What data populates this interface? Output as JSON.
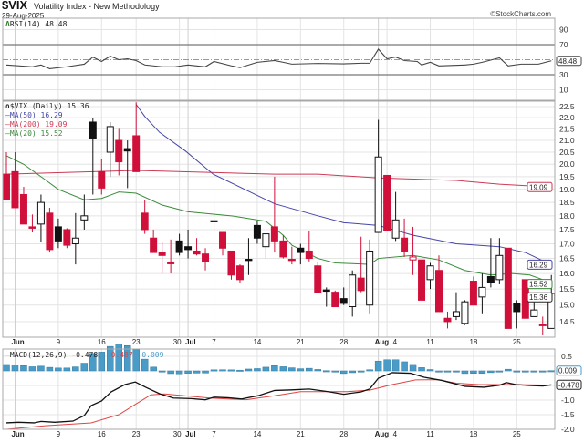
{
  "header": {
    "symbol": "$VIX",
    "name": "Volatility Index - New Methodology",
    "date": "29-Aug-2025",
    "watermark": "©StockCharts.com"
  },
  "legends": {
    "rsi": "RSI(14) 48.48",
    "price": "$VIX (Daily) 15.36",
    "ma50": "MA(50) 16.29",
    "ma200": "MA(200) 19.09",
    "ma20": "MA(20) 15.52",
    "macd_name": "MACD(12,26,9) -0.478",
    "macd_signal": ", -0.487",
    "macd_hist": ", 0.009"
  },
  "colors": {
    "up": "#111111",
    "down": "#d0103a",
    "ma50": "#4646a8",
    "ma200": "#cc3a55",
    "ma20": "#3a8a3a",
    "macd": "#111111",
    "signal": "#e04545",
    "histogram": "#4a9cc8"
  },
  "chart_data": {
    "type": "candlestick",
    "x_ticks": [
      {
        "label": "Jun",
        "index": 1,
        "month": true
      },
      {
        "label": "9",
        "index": 6
      },
      {
        "label": "16",
        "index": 11
      },
      {
        "label": "23",
        "index": 15
      },
      {
        "label": "30",
        "index": 20
      },
      {
        "label": "Jul",
        "index": 21,
        "month": true
      },
      {
        "label": "7",
        "index": 24
      },
      {
        "label": "14",
        "index": 29
      },
      {
        "label": "21",
        "index": 34
      },
      {
        "label": "28",
        "index": 39
      },
      {
        "label": "Aug",
        "index": 43,
        "month": true
      },
      {
        "label": "4",
        "index": 44
      },
      {
        "label": "11",
        "index": 49
      },
      {
        "label": "18",
        "index": 54
      },
      {
        "label": "25",
        "index": 59
      }
    ],
    "rsi": {
      "ticks": [
        90,
        70,
        30,
        10
      ],
      "levels": [
        70,
        30
      ],
      "midline": 50,
      "last": "48.48",
      "values": [
        [
          0,
          43
        ],
        [
          3,
          40.6
        ],
        [
          4,
          43
        ],
        [
          5,
          38
        ],
        [
          7,
          40.6
        ],
        [
          9,
          44
        ],
        [
          10,
          53.5
        ],
        [
          11,
          47.6
        ],
        [
          12,
          54.7
        ],
        [
          13,
          50
        ],
        [
          14,
          51.2
        ],
        [
          15,
          48.8
        ],
        [
          16,
          43
        ],
        [
          18,
          40.6
        ],
        [
          19.5,
          40.6
        ],
        [
          21,
          43
        ],
        [
          23,
          40.6
        ],
        [
          24,
          47.6
        ],
        [
          26,
          41.8
        ],
        [
          27,
          39.4
        ],
        [
          29,
          46.5
        ],
        [
          31,
          48.8
        ],
        [
          32,
          46.5
        ],
        [
          33,
          44.1
        ],
        [
          36,
          45
        ],
        [
          39,
          44.5
        ],
        [
          41,
          45.3
        ],
        [
          42,
          45.3
        ],
        [
          43,
          64
        ],
        [
          44,
          51.2
        ],
        [
          45,
          53.5
        ],
        [
          46,
          48.8
        ],
        [
          47.5,
          47.6
        ],
        [
          48,
          43
        ],
        [
          49,
          46.5
        ],
        [
          50,
          41.8
        ],
        [
          53,
          43
        ],
        [
          54,
          44.1
        ],
        [
          55,
          46.5
        ],
        [
          57,
          52.4
        ],
        [
          58,
          41.8
        ],
        [
          59.5,
          44.1
        ],
        [
          61.5,
          44.1
        ],
        [
          63,
          48.48
        ]
      ]
    },
    "price": {
      "scale": "log",
      "ylim": [
        14.05,
        22.8
      ],
      "ticks": [
        "22.5",
        "22.0",
        "21.5",
        "21.0",
        "20.5",
        "20.0",
        "19.5",
        "19.0",
        "18.5",
        "18.0",
        "17.5",
        "17.0",
        "16.5",
        "16.0",
        "15.5",
        "15.0",
        "14.5"
      ],
      "candles_ohlc_color": [
        [
          19.6,
          20.5,
          18.6,
          18.6,
          "r"
        ],
        [
          19.7,
          20.5,
          18.3,
          18.3,
          "r"
        ],
        [
          18.8,
          19.1,
          17.7,
          17.7,
          "r"
        ],
        [
          17.6,
          18.05,
          17.4,
          17.55,
          "r"
        ],
        [
          17.7,
          18.8,
          17.05,
          18.5,
          "k"
        ],
        [
          18.1,
          18.3,
          16.7,
          16.8,
          "r"
        ],
        [
          17.6,
          17.9,
          16.85,
          17.1,
          "k"
        ],
        [
          17.5,
          17.55,
          16.85,
          16.95,
          "r"
        ],
        [
          17.0,
          18.1,
          16.3,
          17.2,
          "k"
        ],
        [
          17.85,
          18.8,
          17.5,
          18.0,
          "k"
        ],
        [
          21.8,
          22.0,
          18.8,
          21.1,
          "k"
        ],
        [
          19.7,
          20.2,
          18.8,
          19.05,
          "r"
        ],
        [
          20.5,
          21.8,
          19.5,
          21.6,
          "k"
        ],
        [
          21.0,
          21.5,
          19.55,
          20.1,
          "r"
        ],
        [
          20.65,
          21.0,
          19.05,
          20.55,
          "k"
        ],
        [
          21.2,
          22.7,
          19.7,
          19.7,
          "r"
        ],
        [
          18.1,
          18.6,
          17.35,
          17.5,
          "r"
        ],
        [
          17.2,
          17.5,
          16.7,
          16.7,
          "r"
        ],
        [
          16.7,
          17.05,
          16.0,
          16.6,
          "r"
        ],
        [
          16.38,
          17.15,
          16.0,
          16.32,
          "r"
        ],
        [
          17.1,
          17.35,
          16.6,
          16.7,
          "k"
        ],
        [
          16.9,
          17.5,
          16.5,
          16.8,
          "k"
        ],
        [
          16.75,
          17.2,
          16.6,
          16.65,
          "r"
        ],
        [
          16.65,
          16.85,
          16.1,
          16.4,
          "r"
        ],
        [
          17.82,
          18.45,
          17.5,
          17.78,
          "k"
        ],
        [
          17.4,
          17.4,
          16.6,
          16.85,
          "r"
        ],
        [
          16.75,
          16.75,
          15.8,
          15.95,
          "r"
        ],
        [
          16.25,
          16.3,
          15.7,
          15.8,
          "r"
        ],
        [
          16.47,
          17.2,
          15.95,
          16.43,
          "k"
        ],
        [
          17.65,
          17.8,
          17.0,
          17.2,
          "k"
        ],
        [
          16.9,
          17.35,
          16.5,
          17.35,
          "k"
        ],
        [
          17.6,
          19.5,
          16.7,
          17.1,
          "r"
        ],
        [
          17.1,
          17.3,
          16.5,
          16.55,
          "r"
        ],
        [
          16.47,
          16.9,
          16.3,
          16.43,
          "r"
        ],
        [
          16.85,
          17.0,
          16.3,
          16.7,
          "k"
        ],
        [
          16.75,
          17.45,
          16.4,
          16.5,
          "r"
        ],
        [
          16.25,
          16.4,
          15.4,
          15.4,
          "r"
        ],
        [
          15.47,
          15.55,
          14.95,
          15.43,
          "k"
        ],
        [
          15.4,
          15.45,
          14.95,
          14.95,
          "r"
        ],
        [
          15.2,
          15.55,
          15.0,
          15.05,
          "k"
        ],
        [
          14.95,
          16.1,
          14.65,
          15.95,
          "k"
        ],
        [
          15.85,
          17.25,
          15.4,
          15.45,
          "r"
        ],
        [
          15.0,
          17.15,
          14.75,
          16.75,
          "k"
        ],
        [
          17.4,
          21.9,
          17.4,
          20.3,
          "k"
        ],
        [
          19.55,
          19.55,
          17.45,
          17.45,
          "r"
        ],
        [
          17.2,
          18.9,
          17.1,
          17.85,
          "k"
        ],
        [
          17.2,
          17.9,
          16.55,
          16.75,
          "r"
        ],
        [
          16.45,
          17.6,
          15.95,
          16.55,
          "r"
        ],
        [
          16.45,
          16.45,
          15.15,
          15.15,
          "r"
        ],
        [
          15.8,
          16.35,
          15.5,
          16.25,
          "k"
        ],
        [
          16.1,
          16.6,
          14.8,
          14.8,
          "r"
        ],
        [
          14.6,
          14.8,
          14.3,
          14.5,
          "r"
        ],
        [
          14.65,
          15.4,
          14.55,
          14.8,
          "k"
        ],
        [
          14.45,
          15.15,
          14.4,
          15.1,
          "k"
        ],
        [
          15.75,
          15.9,
          15.0,
          15.0,
          "r"
        ],
        [
          15.25,
          16.0,
          14.75,
          15.55,
          "k"
        ],
        [
          15.9,
          17.2,
          15.55,
          15.7,
          "k"
        ],
        [
          15.8,
          17.2,
          15.65,
          16.6,
          "k"
        ],
        [
          16.85,
          16.85,
          14.3,
          14.3,
          "r"
        ],
        [
          15.05,
          15.15,
          14.3,
          14.8,
          "k"
        ],
        [
          15.8,
          15.8,
          14.6,
          14.6,
          "r"
        ],
        [
          14.65,
          15.2,
          14.65,
          14.85,
          "k"
        ],
        [
          14.42,
          14.65,
          14.1,
          14.38,
          "r"
        ],
        [
          14.3,
          15.95,
          14.3,
          15.36,
          "k"
        ]
      ],
      "ma50": [
        [
          15,
          22.6
        ],
        [
          16,
          22.05
        ],
        [
          17.7,
          21.35
        ],
        [
          20.7,
          20.55
        ],
        [
          23.9,
          19.6
        ],
        [
          29.1,
          18.75
        ],
        [
          31,
          18.45
        ],
        [
          36,
          18.0
        ],
        [
          39,
          17.75
        ],
        [
          43,
          17.65
        ],
        [
          47,
          17.3
        ],
        [
          52,
          17.0
        ],
        [
          57,
          16.9
        ],
        [
          60,
          16.7
        ],
        [
          63,
          16.29
        ]
      ],
      "ma200": [
        [
          0,
          19.6
        ],
        [
          15,
          19.75
        ],
        [
          31,
          19.6
        ],
        [
          36,
          19.6
        ],
        [
          43,
          19.45
        ],
        [
          52,
          19.35
        ],
        [
          57,
          19.2
        ],
        [
          63,
          19.09
        ]
      ],
      "ma20": [
        [
          0,
          20.35
        ],
        [
          2,
          20.0
        ],
        [
          4,
          19.5
        ],
        [
          6,
          19.0
        ],
        [
          9,
          18.6
        ],
        [
          11,
          18.65
        ],
        [
          13,
          18.9
        ],
        [
          15,
          18.85
        ],
        [
          18,
          18.4
        ],
        [
          21,
          18.15
        ],
        [
          26,
          18.0
        ],
        [
          30,
          17.8
        ],
        [
          31,
          17.55
        ],
        [
          32,
          17.3
        ],
        [
          33,
          16.95
        ],
        [
          36,
          16.5
        ],
        [
          38,
          16.35
        ],
        [
          42,
          16.3
        ],
        [
          43,
          16.5
        ],
        [
          47,
          16.6
        ],
        [
          50,
          16.45
        ],
        [
          53,
          16.1
        ],
        [
          56,
          15.95
        ],
        [
          58.5,
          16.0
        ],
        [
          60.5,
          15.95
        ],
        [
          62,
          15.8
        ],
        [
          63,
          15.52
        ]
      ],
      "last_labels": {
        "ma200": "19.09",
        "ma50": "16.29",
        "ma20": "15.52",
        "close": "15.36"
      }
    },
    "macd": {
      "ticks": [
        "0.5",
        "-1.0",
        "-1.5",
        "-2.0"
      ],
      "ylim": [
        -2.05,
        0.75
      ],
      "macd": [
        [
          0,
          -1.78
        ],
        [
          1.4,
          -1.76
        ],
        [
          3.2,
          -1.78
        ],
        [
          4,
          -1.73
        ],
        [
          5.6,
          -1.76
        ],
        [
          7.7,
          -1.72
        ],
        [
          9,
          -1.53
        ],
        [
          9.8,
          -1.19
        ],
        [
          11,
          -1.03
        ],
        [
          12.1,
          -0.72
        ],
        [
          13.7,
          -0.47
        ],
        [
          14.9,
          -0.38
        ],
        [
          16.1,
          -0.56
        ],
        [
          17.7,
          -0.78
        ],
        [
          19.3,
          -0.93
        ],
        [
          21.4,
          -0.95
        ],
        [
          23,
          -0.99
        ],
        [
          24,
          -0.9
        ],
        [
          25.6,
          -0.92
        ],
        [
          27.2,
          -0.96
        ],
        [
          29.1,
          -0.85
        ],
        [
          31,
          -0.67
        ],
        [
          33,
          -0.65
        ],
        [
          35,
          -0.62
        ],
        [
          37.2,
          -0.71
        ],
        [
          39,
          -0.8
        ],
        [
          41,
          -0.72
        ],
        [
          42,
          -0.62
        ],
        [
          43,
          -0.25
        ],
        [
          44.6,
          -0.06
        ],
        [
          46.7,
          -0.08
        ],
        [
          48.3,
          -0.22
        ],
        [
          50.4,
          -0.33
        ],
        [
          53,
          -0.53
        ],
        [
          55.2,
          -0.56
        ],
        [
          57,
          -0.49
        ],
        [
          57.8,
          -0.4
        ],
        [
          58.9,
          -0.47
        ],
        [
          60.4,
          -0.5
        ],
        [
          62,
          -0.52
        ],
        [
          63,
          -0.478
        ]
      ],
      "signal": [
        [
          0,
          -2.0
        ],
        [
          4.5,
          -1.88
        ],
        [
          9.8,
          -1.78
        ],
        [
          13,
          -1.5
        ],
        [
          15,
          -1.13
        ],
        [
          16.7,
          -0.82
        ],
        [
          18.3,
          -0.79
        ],
        [
          23.5,
          -0.93
        ],
        [
          27.7,
          -0.99
        ],
        [
          31,
          -0.85
        ],
        [
          34,
          -0.71
        ],
        [
          39.4,
          -0.71
        ],
        [
          42,
          -0.66
        ],
        [
          44.6,
          -0.47
        ],
        [
          47.3,
          -0.31
        ],
        [
          49.9,
          -0.3
        ],
        [
          52,
          -0.42
        ],
        [
          54.6,
          -0.47
        ],
        [
          58.3,
          -0.47
        ],
        [
          63,
          -0.487
        ]
      ],
      "last_labels": {
        "histogram": "0.009",
        "macd": "-0.478"
      }
    }
  }
}
